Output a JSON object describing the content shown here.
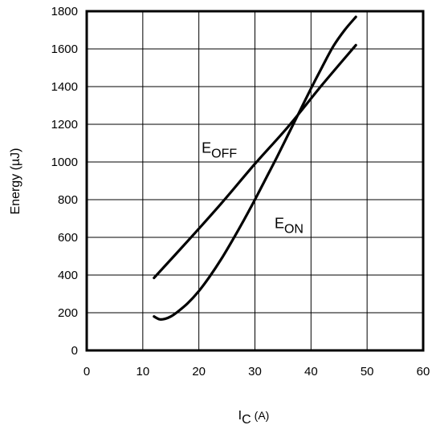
{
  "chart_data": {
    "type": "line",
    "title": "",
    "xlabel": {
      "main": "I",
      "sub": "C",
      "unit": "(A)"
    },
    "ylabel": "Energy (µJ)",
    "xlim": [
      0,
      60
    ],
    "ylim": [
      0,
      1800
    ],
    "xticks": [
      0,
      10,
      20,
      30,
      40,
      50,
      60
    ],
    "yticks": [
      0,
      200,
      400,
      600,
      800,
      1000,
      1200,
      1400,
      1600,
      1800
    ],
    "grid": true,
    "series": [
      {
        "name": "E_OFF",
        "label_main": "E",
        "label_sub": "OFF",
        "label_at": [
          20.5,
          1050
        ],
        "x": [
          12,
          18,
          24,
          30,
          36,
          42,
          48
        ],
        "y": [
          385,
          580,
          780,
          990,
          1190,
          1410,
          1620
        ]
      },
      {
        "name": "E_ON",
        "label_main": "E",
        "label_sub": "ON",
        "label_at": [
          33.5,
          650
        ],
        "x": [
          12,
          13,
          14,
          15,
          16,
          18,
          20,
          22,
          24,
          26,
          28,
          30,
          32,
          34,
          36,
          38,
          40,
          42,
          44,
          46,
          48
        ],
        "y": [
          180,
          165,
          168,
          180,
          200,
          250,
          315,
          395,
          485,
          585,
          690,
          800,
          915,
          1030,
          1150,
          1270,
          1390,
          1505,
          1615,
          1700,
          1770
        ]
      }
    ]
  }
}
